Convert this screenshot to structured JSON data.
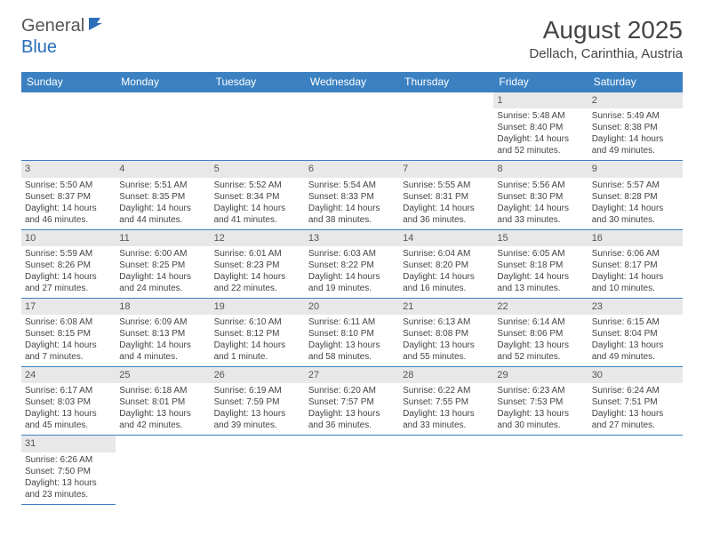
{
  "logo": {
    "text1": "General",
    "text2": "Blue"
  },
  "title": "August 2025",
  "location": "Dellach, Carinthia, Austria",
  "colors": {
    "header_bg": "#3b81c2",
    "header_fg": "#ffffff",
    "daynum_bg": "#e8e8e8",
    "border": "#3b81c2",
    "text": "#444444"
  },
  "weekdays": [
    "Sunday",
    "Monday",
    "Tuesday",
    "Wednesday",
    "Thursday",
    "Friday",
    "Saturday"
  ],
  "days": {
    "1": {
      "sunrise": "5:48 AM",
      "sunset": "8:40 PM",
      "daylight": "14 hours and 52 minutes."
    },
    "2": {
      "sunrise": "5:49 AM",
      "sunset": "8:38 PM",
      "daylight": "14 hours and 49 minutes."
    },
    "3": {
      "sunrise": "5:50 AM",
      "sunset": "8:37 PM",
      "daylight": "14 hours and 46 minutes."
    },
    "4": {
      "sunrise": "5:51 AM",
      "sunset": "8:35 PM",
      "daylight": "14 hours and 44 minutes."
    },
    "5": {
      "sunrise": "5:52 AM",
      "sunset": "8:34 PM",
      "daylight": "14 hours and 41 minutes."
    },
    "6": {
      "sunrise": "5:54 AM",
      "sunset": "8:33 PM",
      "daylight": "14 hours and 38 minutes."
    },
    "7": {
      "sunrise": "5:55 AM",
      "sunset": "8:31 PM",
      "daylight": "14 hours and 36 minutes."
    },
    "8": {
      "sunrise": "5:56 AM",
      "sunset": "8:30 PM",
      "daylight": "14 hours and 33 minutes."
    },
    "9": {
      "sunrise": "5:57 AM",
      "sunset": "8:28 PM",
      "daylight": "14 hours and 30 minutes."
    },
    "10": {
      "sunrise": "5:59 AM",
      "sunset": "8:26 PM",
      "daylight": "14 hours and 27 minutes."
    },
    "11": {
      "sunrise": "6:00 AM",
      "sunset": "8:25 PM",
      "daylight": "14 hours and 24 minutes."
    },
    "12": {
      "sunrise": "6:01 AM",
      "sunset": "8:23 PM",
      "daylight": "14 hours and 22 minutes."
    },
    "13": {
      "sunrise": "6:03 AM",
      "sunset": "8:22 PM",
      "daylight": "14 hours and 19 minutes."
    },
    "14": {
      "sunrise": "6:04 AM",
      "sunset": "8:20 PM",
      "daylight": "14 hours and 16 minutes."
    },
    "15": {
      "sunrise": "6:05 AM",
      "sunset": "8:18 PM",
      "daylight": "14 hours and 13 minutes."
    },
    "16": {
      "sunrise": "6:06 AM",
      "sunset": "8:17 PM",
      "daylight": "14 hours and 10 minutes."
    },
    "17": {
      "sunrise": "6:08 AM",
      "sunset": "8:15 PM",
      "daylight": "14 hours and 7 minutes."
    },
    "18": {
      "sunrise": "6:09 AM",
      "sunset": "8:13 PM",
      "daylight": "14 hours and 4 minutes."
    },
    "19": {
      "sunrise": "6:10 AM",
      "sunset": "8:12 PM",
      "daylight": "14 hours and 1 minute."
    },
    "20": {
      "sunrise": "6:11 AM",
      "sunset": "8:10 PM",
      "daylight": "13 hours and 58 minutes."
    },
    "21": {
      "sunrise": "6:13 AM",
      "sunset": "8:08 PM",
      "daylight": "13 hours and 55 minutes."
    },
    "22": {
      "sunrise": "6:14 AM",
      "sunset": "8:06 PM",
      "daylight": "13 hours and 52 minutes."
    },
    "23": {
      "sunrise": "6:15 AM",
      "sunset": "8:04 PM",
      "daylight": "13 hours and 49 minutes."
    },
    "24": {
      "sunrise": "6:17 AM",
      "sunset": "8:03 PM",
      "daylight": "13 hours and 45 minutes."
    },
    "25": {
      "sunrise": "6:18 AM",
      "sunset": "8:01 PM",
      "daylight": "13 hours and 42 minutes."
    },
    "26": {
      "sunrise": "6:19 AM",
      "sunset": "7:59 PM",
      "daylight": "13 hours and 39 minutes."
    },
    "27": {
      "sunrise": "6:20 AM",
      "sunset": "7:57 PM",
      "daylight": "13 hours and 36 minutes."
    },
    "28": {
      "sunrise": "6:22 AM",
      "sunset": "7:55 PM",
      "daylight": "13 hours and 33 minutes."
    },
    "29": {
      "sunrise": "6:23 AM",
      "sunset": "7:53 PM",
      "daylight": "13 hours and 30 minutes."
    },
    "30": {
      "sunrise": "6:24 AM",
      "sunset": "7:51 PM",
      "daylight": "13 hours and 27 minutes."
    },
    "31": {
      "sunrise": "6:26 AM",
      "sunset": "7:50 PM",
      "daylight": "13 hours and 23 minutes."
    }
  },
  "grid": [
    [
      null,
      null,
      null,
      null,
      null,
      "1",
      "2"
    ],
    [
      "3",
      "4",
      "5",
      "6",
      "7",
      "8",
      "9"
    ],
    [
      "10",
      "11",
      "12",
      "13",
      "14",
      "15",
      "16"
    ],
    [
      "17",
      "18",
      "19",
      "20",
      "21",
      "22",
      "23"
    ],
    [
      "24",
      "25",
      "26",
      "27",
      "28",
      "29",
      "30"
    ],
    [
      "31",
      null,
      null,
      null,
      null,
      null,
      null
    ]
  ],
  "labels": {
    "sunrise": "Sunrise: ",
    "sunset": "Sunset: ",
    "daylight": "Daylight: "
  }
}
